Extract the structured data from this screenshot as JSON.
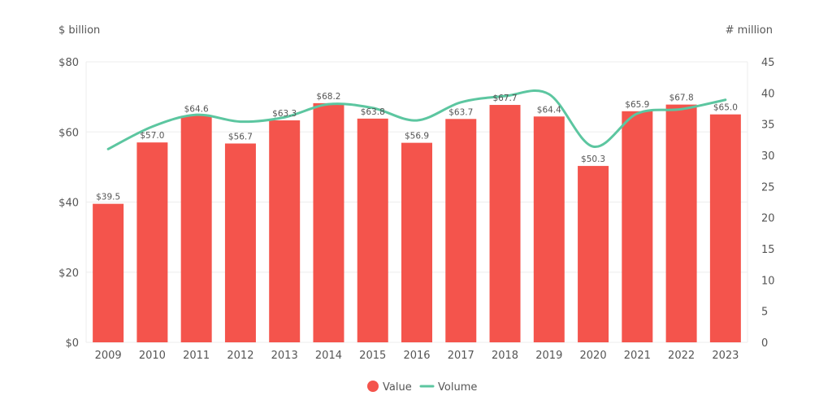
{
  "chart_data": {
    "type": "bar",
    "categories": [
      "2009",
      "2010",
      "2011",
      "2012",
      "2013",
      "2014",
      "2015",
      "2016",
      "2017",
      "2018",
      "2019",
      "2020",
      "2021",
      "2022",
      "2023"
    ],
    "y_left_label": "$ billion",
    "y_right_label": "# million",
    "y_left_ticks": [
      "$0",
      "$20",
      "$40",
      "$60",
      "$80"
    ],
    "y_right_ticks": [
      "0",
      "5",
      "10",
      "15",
      "20",
      "25",
      "30",
      "35",
      "40",
      "45"
    ],
    "ylim_left": [
      0,
      80
    ],
    "ylim_right": [
      0,
      45
    ],
    "series": [
      {
        "name": "Value",
        "type": "bar",
        "axis": "left",
        "color": "#F4544C",
        "values": [
          39.5,
          57.0,
          64.6,
          56.7,
          63.3,
          68.2,
          63.8,
          56.9,
          63.7,
          67.7,
          64.4,
          50.3,
          65.9,
          67.8,
          65.0
        ],
        "labels": [
          "$39.5",
          "$57.0",
          "$64.6",
          "$56.7",
          "$63.3",
          "$68.2",
          "$63.8",
          "$56.9",
          "$63.7",
          "$67.7",
          "$64.4",
          "$50.3",
          "$65.9",
          "$67.8",
          "$65.0"
        ]
      },
      {
        "name": "Volume",
        "type": "line",
        "axis": "right",
        "color": "#5CC6A0",
        "values": [
          31.0,
          34.6,
          36.5,
          35.4,
          36.1,
          38.2,
          37.6,
          35.6,
          38.5,
          39.5,
          39.8,
          31.4,
          36.7,
          37.4,
          38.9
        ]
      }
    ],
    "grid": true,
    "legend_position": "bottom-center"
  }
}
